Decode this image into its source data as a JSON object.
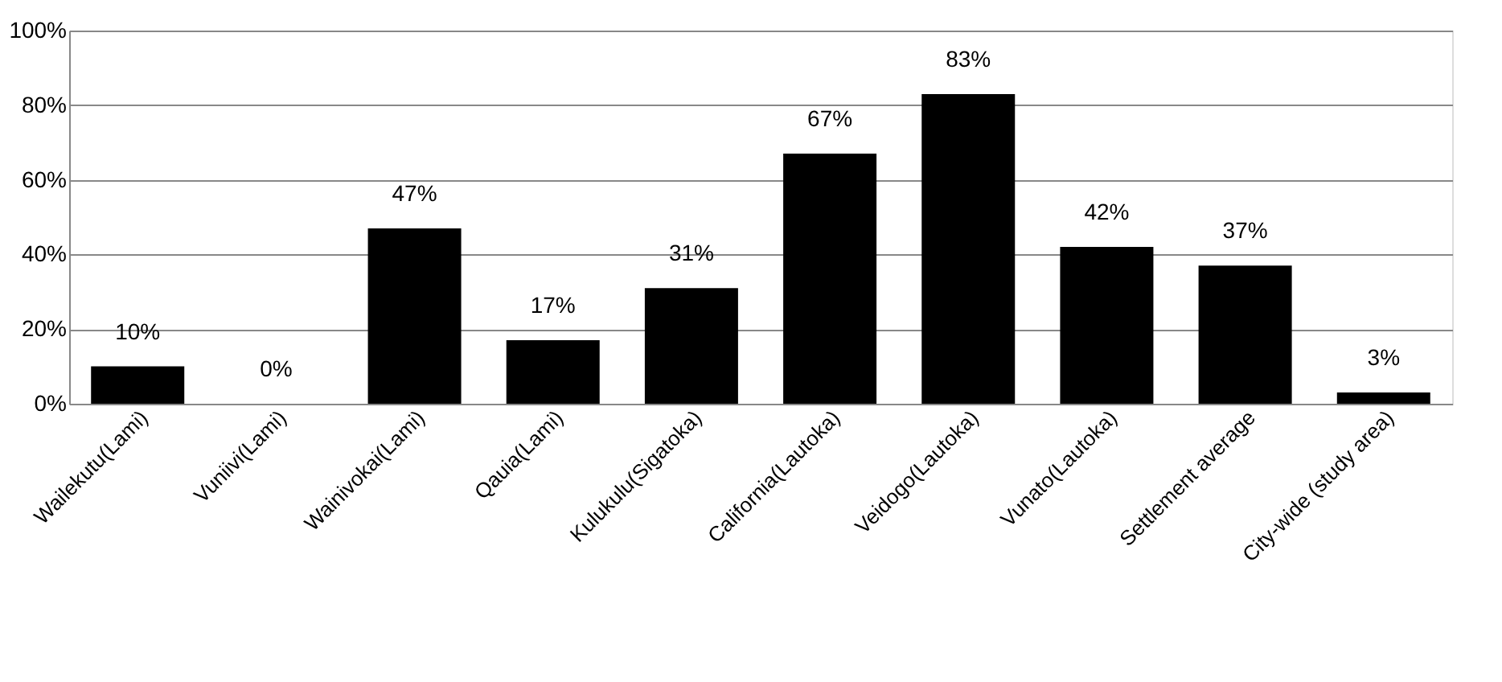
{
  "chart_data": {
    "type": "bar",
    "categories": [
      "Wailekutu(Lami)",
      "Vuniivi(Lami)",
      "Wainivokai(Lami)",
      "Qauia(Lami)",
      "Kulukulu(Sigatoka)",
      "California(Lautoka)",
      "Veidogo(Lautoka)",
      "Vunato(Lautoka)",
      "Settlement average",
      "City-wide (study area)"
    ],
    "values": [
      10,
      0,
      47,
      17,
      31,
      67,
      83,
      42,
      37,
      3
    ],
    "value_labels": [
      "10%",
      "0%",
      "47%",
      "17%",
      "31%",
      "67%",
      "83%",
      "42%",
      "37%",
      "3%"
    ],
    "color": "#000000",
    "ylim": [
      0,
      100
    ],
    "yticks": [
      {
        "value": 0,
        "label": "0%"
      },
      {
        "value": 20,
        "label": "20%"
      },
      {
        "value": 40,
        "label": "40%"
      },
      {
        "value": 60,
        "label": "60%"
      },
      {
        "value": 80,
        "label": "80%"
      },
      {
        "value": 100,
        "label": "100%"
      }
    ],
    "grid": "y"
  }
}
